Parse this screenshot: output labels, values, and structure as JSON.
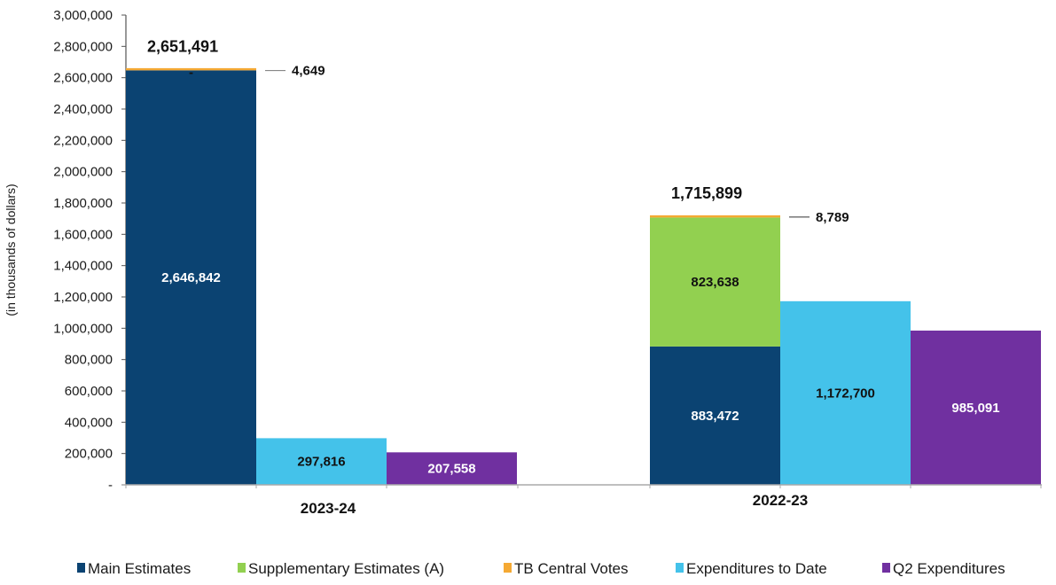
{
  "chart_data": {
    "type": "bar",
    "title": "",
    "xlabel": "",
    "ylabel": "(in thousands of dollars)",
    "ylim": [
      0,
      3000000
    ],
    "ytick_step": 200000,
    "yticks": [
      "-",
      "200,000",
      "400,000",
      "600,000",
      "800,000",
      "1,000,000",
      "1,200,000",
      "1,400,000",
      "1,600,000",
      "1,800,000",
      "2,000,000",
      "2,200,000",
      "2,400,000",
      "2,600,000",
      "2,800,000",
      "3,000,000"
    ],
    "grid": false,
    "legend_position": "bottom",
    "categories": [
      "2023-24",
      "2022-23"
    ],
    "series": [
      {
        "name": "Main Estimates",
        "color": "#0b4372",
        "stack": "authorities",
        "values": [
          2646842,
          883472
        ],
        "labels": [
          "2,646,842",
          "883,472"
        ],
        "label_color": "#ffffff"
      },
      {
        "name": "Supplementary Estimates (A)",
        "color": "#92d050",
        "stack": "authorities",
        "values": [
          0,
          823638
        ],
        "labels": [
          "-",
          "823,638"
        ],
        "label_color": "#111111"
      },
      {
        "name": "TB Central Votes",
        "color": "#f5a933",
        "stack": "authorities",
        "values": [
          4649,
          8789
        ],
        "labels": [
          "4,649",
          "8,789"
        ],
        "label_color": "#111111"
      },
      {
        "name": "Expenditures to Date",
        "color": "#44c2ea",
        "stack": "expenditures",
        "values": [
          297816,
          1172700
        ],
        "labels": [
          "297,816",
          "1,172,700"
        ],
        "label_color": "#111111"
      },
      {
        "name": "Q2 Expenditures",
        "color": "#7030a0",
        "stack": "q2",
        "values": [
          207558,
          985091
        ],
        "labels": [
          "207,558",
          "985,091"
        ],
        "label_color": "#ffffff"
      }
    ],
    "totals": [
      {
        "category": "2023-24",
        "value": 2651491,
        "label": "2,651,491"
      },
      {
        "category": "2022-23",
        "value": 1715899,
        "label": "1,715,899"
      }
    ]
  }
}
